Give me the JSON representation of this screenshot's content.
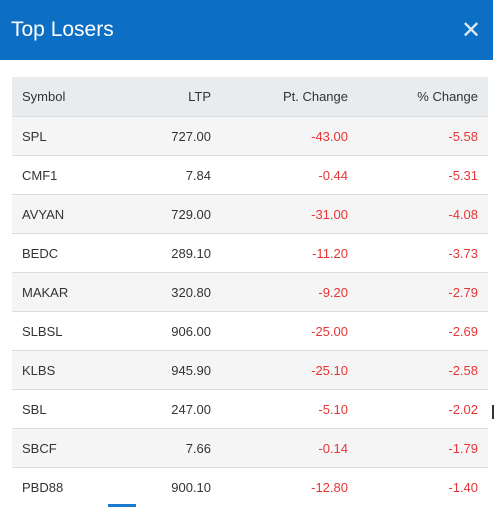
{
  "modal": {
    "title": "Top Losers",
    "close_symbol": "✕",
    "accent_color": "#0d6fc4",
    "negative_color": "#e83535"
  },
  "table": {
    "headers": [
      "Symbol",
      "LTP",
      "Pt. Change",
      "% Change"
    ],
    "rows": [
      [
        "SPL",
        "727.00",
        "-43.00",
        "-5.58"
      ],
      [
        "CMF1",
        "7.84",
        "-0.44",
        "-5.31"
      ],
      [
        "AVYAN",
        "729.00",
        "-31.00",
        "-4.08"
      ],
      [
        "BEDC",
        "289.10",
        "-11.20",
        "-3.73"
      ],
      [
        "MAKAR",
        "320.80",
        "-9.20",
        "-2.79"
      ],
      [
        "SLBSL",
        "906.00",
        "-25.00",
        "-2.69"
      ],
      [
        "KLBS",
        "945.90",
        "-25.10",
        "-2.58"
      ],
      [
        "SBL",
        "247.00",
        "-5.10",
        "-2.02"
      ],
      [
        "SBCF",
        "7.66",
        "-0.14",
        "-1.79"
      ],
      [
        "PBD88",
        "900.10",
        "-12.80",
        "-1.40"
      ]
    ]
  }
}
